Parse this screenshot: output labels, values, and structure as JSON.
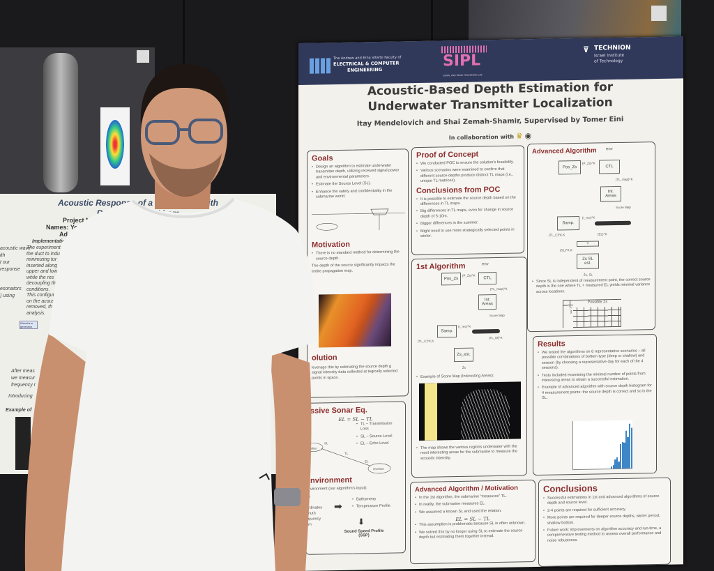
{
  "scene": {
    "background_color": "#1a1a1c",
    "left_poster": {
      "title_line1": "Acoustic Response of a Waveguide with",
      "title_line2": "Resonators and Lam",
      "project_number": "Project Num",
      "names": "Names: Yo",
      "advisor": "Ad",
      "implementation_heading": "Implementation",
      "left_col": [
        "acoustic wave",
        "ith",
        "t our",
        "response",
        "esonators",
        ") using"
      ],
      "impl_lines": [
        "The experimenta",
        "the duct to indu",
        "minimizing tur",
        "inserted along",
        "upper and low",
        "while the res",
        "decoupling th",
        "conditions.",
        "This configur",
        "on the acoust",
        "removed, th",
        "analysis."
      ],
      "bottom_lines": [
        "After meas",
        "we measur",
        "frequency r",
        "Introducing",
        "Example of"
      ],
      "diagram_label": "Waveform generator (power)"
    },
    "main_poster": {
      "header": {
        "faculty_small": "The Andrew and Erna Viterbi Faculty of",
        "faculty_line1": "ELECTRICAL & COMPUTER",
        "faculty_line2": "ENGINEERING",
        "lab": "SIPL",
        "lab_subtitle": "SIGNAL AND IMAGE PROCESSING LAB",
        "institute": "TECHNION",
        "institute_sub1": "Israel Institute",
        "institute_sub2": "of Technology",
        "accent_color": "#30395a",
        "lab_color": "#e070b0"
      },
      "title_line1": "Acoustic-Based Depth Estimation for",
      "title_line2": "Underwater Transmitter Localization",
      "authors": "Itay Mendelovich and Shai Zemah-Shamir, Supervised by Tomer Eini",
      "collab": "In collaboration with",
      "goals": {
        "heading": "Goals",
        "items": [
          "Design an algorithm to estimate underwater transmitter depth, utilizing received signal power and environmental parameters.",
          "Estimate the Source Level (SL).",
          "Enhance the safety and confidentiality in the submarine world."
        ]
      },
      "motivation": {
        "heading": "Motivation",
        "items": [
          "There is no standard method for determining the source depth.",
          "The depth of the source significantly impacts the entire propagation map."
        ]
      },
      "solution": {
        "heading": "olution",
        "text": "leverage this by estimating the source depth g signal intensity data collected at tegically selected points in space."
      },
      "sonar": {
        "heading": "ssive Sonar Eq.",
        "equation": "EL = SL − TL",
        "items": [
          "TL – Transmission Loss",
          "SL – Source Level",
          "EL – Echo Level"
        ],
        "node_left": "smitter",
        "node_right": "receiver",
        "edge_sl": "SL",
        "edge_tl": "TL",
        "edge_el": "EL"
      },
      "environment": {
        "heading": "nvironment",
        "intro": "vironment (our algorithm's input):",
        "left_items": [
          "ge",
          "a",
          "ordinates",
          "imuth",
          "equency",
          "am"
        ],
        "right_items": [
          "Bathymetry",
          "Temperature Profile"
        ],
        "output_line1": "Sound Speed Profile",
        "output_line2": "(SSP)"
      },
      "poc": {
        "heading": "Proof of Concept",
        "items": [
          "We conducted POC to ensure the solution's feasibility.",
          "Various scenarios were examined to confirm that different source depths produce distinct TL maps (i.e., unique TL matrices)."
        ]
      },
      "poc_conclusions": {
        "heading": "Conclusions from POC",
        "items": [
          "It is possible to estimate the source depth based on the differences in TL maps.",
          "Big differences in TL maps, even for change in source depth of 5-10m.",
          "Bigger differences in the summer.",
          "Might need to use more strategically selected points in winter."
        ]
      },
      "first_algorithm": {
        "heading": "1st Algorithm",
        "env": "env",
        "boxes": {
          "pos": "Pos_Zs",
          "ctl": "CTL",
          "int1": "Int.",
          "int2": "Areas",
          "samp": "Samp.",
          "est": "Zs_est."
        },
        "labels": {
          "pzs": "{P_Zs}^K",
          "tlmap": "{TL_map}^K",
          "score": "Score Map",
          "rrec": "{r_rec}^K",
          "tlc": "{TL_C}^K,K",
          "tlm": "{TL_M}^K",
          "out": "Ẑs"
        },
        "example": "Example of Score Map (Interesting Areas):",
        "note": "The map shows the various regions underwater with the most interesting areas for the submarine to measure the acoustic intensity."
      },
      "adv_motivation": {
        "heading": "Advanced Algorithm / Motivation",
        "items": [
          "In the 1st algorithm, the submarine \"measures\" TL.",
          "In reality, the submarine measures EL.",
          "We assumed a known SL and used the relation:",
          "This assumption is problematic because SL is often unknown.",
          "We solved this by no longer using SL to estimate the source depth but estimating them together instead."
        ],
        "equation": "EL = SL − TL"
      },
      "advanced_algorithm": {
        "heading": "Advanced Algorithm",
        "env": "env",
        "boxes": {
          "pos": "Pos_Zs",
          "ctl": "CTL",
          "int1": "Int.",
          "int2": "Areas",
          "samp": "Samp.",
          "plus": "+",
          "est1": "Zs SL",
          "est2": "est."
        },
        "labels": {
          "pzs": "{P_Zs}^K",
          "tlmap": "{TL_map}^K",
          "score": "Score Map",
          "rrec": "{r_rec}^K",
          "tlc": "{TL_C}^K,K",
          "el": "{EL}^K",
          "sl": "{SL}^K,K",
          "out": "Ẑs, ŜL"
        },
        "note": "Since SL is independent of measurement point, the correct source depth is the one where TL + measured EL yields minimal variance across locations.",
        "table_header": "Possible Zs",
        "table_side": "r_rec"
      },
      "results": {
        "heading": "Results",
        "items": [
          "We tested the algorithms on 8 representative scenarios – all possible combinations of bottom type (deep or shallow) and season (by choosing a representative day for each of the 4 seasons).",
          "Tests included examining the minimal number of points from interesting areas to obtain a successful estimation.",
          "Example of advanced algorithm with source depth histogram for 4 measurement points: the source depth is correct and so is the SL."
        ],
        "histogram_heights": [
          0.05,
          0.08,
          0.2,
          0.25,
          0.15,
          0.55,
          0.6,
          0.58,
          0.85,
          0.7,
          1.0,
          0.9
        ],
        "bar_color": "#3f86c6"
      },
      "conclusions": {
        "heading": "Conclusions",
        "items": [
          "Successful estimations in 1st and advanced algorithms of source depth and source level.",
          "2-4 points are required for sufficient accuracy.",
          "More points are required for deeper source depths, winter period, shallow bottom.",
          "Future work: improvements on algorithm accuracy and run-time, a comprehensive testing method to assess overall performance and noise robustness."
        ]
      }
    }
  }
}
